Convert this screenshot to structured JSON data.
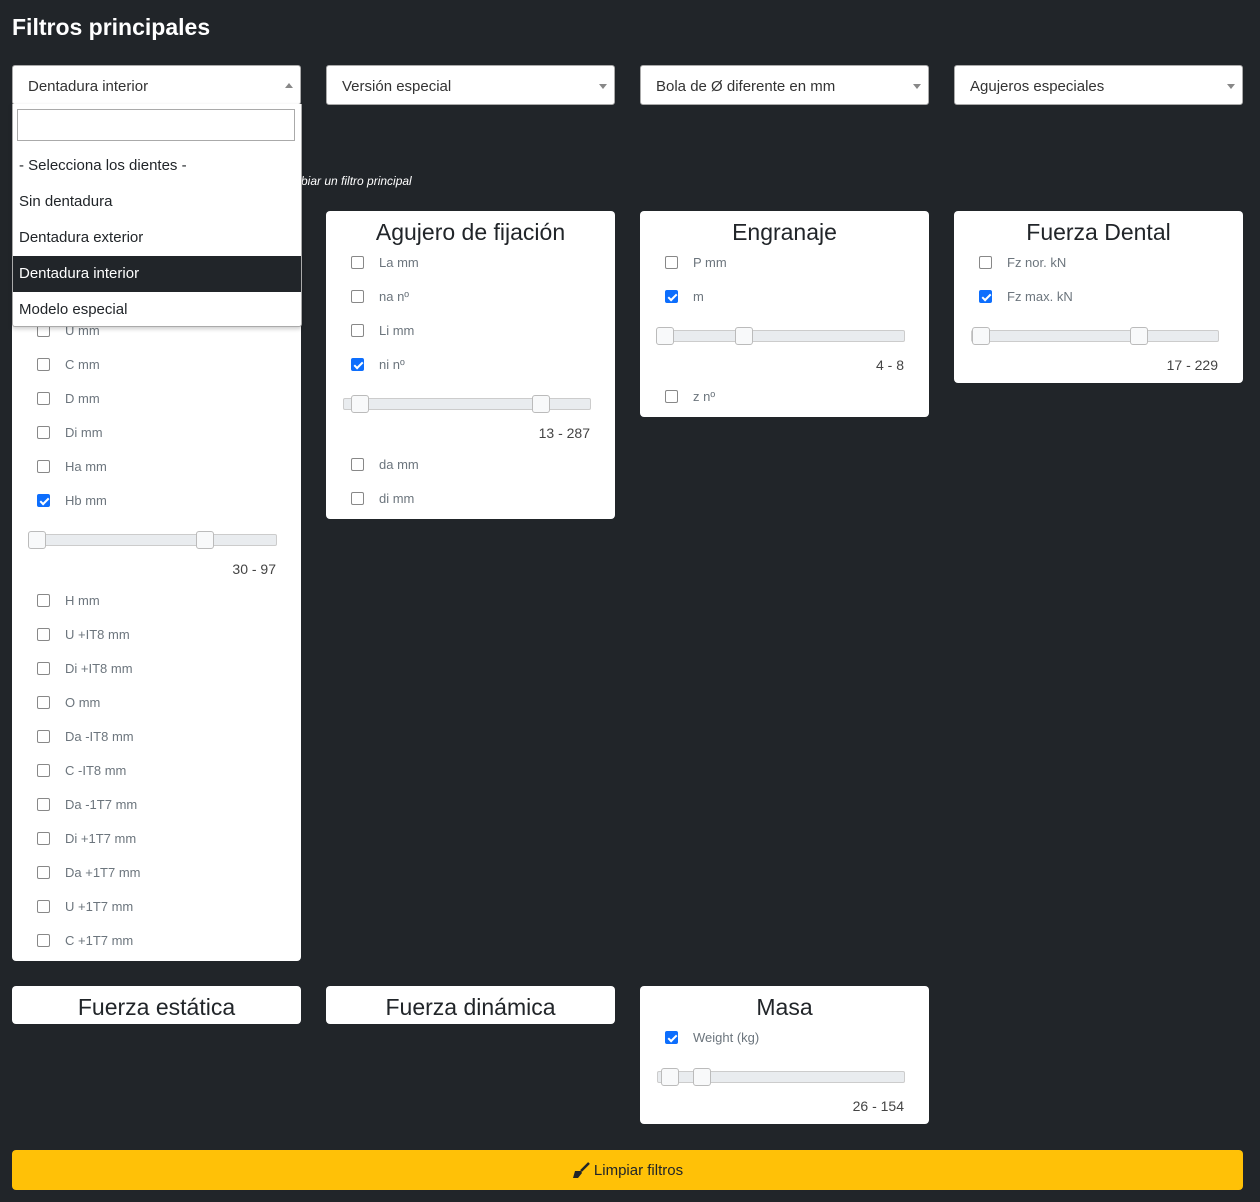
{
  "header": {
    "title": "Filtros principales"
  },
  "selects": [
    "Dentadura interior",
    "Versión especial",
    "Bola de Ø diferente en mm",
    "Agujeros especiales"
  ],
  "dropdown": {
    "options": [
      "- Selecciona los dientes -",
      "Sin dentadura",
      "Dentadura exterior",
      "Dentadura interior",
      "Modelo especial"
    ]
  },
  "hint": "biar un filtro principal",
  "cards": [
    {
      "items": [
        {
          "label": "U mm",
          "checked": false
        },
        {
          "label": "C mm",
          "checked": false
        },
        {
          "label": "D mm",
          "checked": false
        },
        {
          "label": "Di mm",
          "checked": false
        },
        {
          "label": "Ha mm",
          "checked": false
        },
        {
          "label": "Hb mm",
          "checked": true,
          "range": "30 - 97"
        },
        {
          "label": "H mm",
          "checked": false
        },
        {
          "label": "U +IT8 mm",
          "checked": false
        },
        {
          "label": "Di +IT8 mm",
          "checked": false
        },
        {
          "label": "O mm",
          "checked": false
        },
        {
          "label": "Da -IT8 mm",
          "checked": false
        },
        {
          "label": "C -IT8 mm",
          "checked": false
        },
        {
          "label": "Da -1T7 mm",
          "checked": false
        },
        {
          "label": "Di +1T7 mm",
          "checked": false
        },
        {
          "label": "Da +1T7 mm",
          "checked": false
        },
        {
          "label": "U +1T7 mm",
          "checked": false
        },
        {
          "label": "C +1T7 mm",
          "checked": false
        }
      ]
    },
    {
      "title": "Agujero de fijación",
      "items": [
        {
          "label": "La mm",
          "checked": false
        },
        {
          "label": "na nº",
          "checked": false
        },
        {
          "label": "Li mm",
          "checked": false
        },
        {
          "label": "ni nº",
          "checked": true,
          "range": "13 - 287"
        },
        {
          "label": "da mm",
          "checked": false
        },
        {
          "label": "di mm",
          "checked": false
        }
      ]
    },
    {
      "title": "Engranaje",
      "items": [
        {
          "label": "P mm",
          "checked": false
        },
        {
          "label": "m",
          "checked": true,
          "range": "4 - 8"
        },
        {
          "label": "z nº",
          "checked": false
        }
      ]
    },
    {
      "title": "Fuerza Dental",
      "items": [
        {
          "label": "Fz nor. kN",
          "checked": false
        },
        {
          "label": "Fz max. kN",
          "checked": true,
          "range": "17 - 229"
        }
      ]
    },
    {
      "title": "Fuerza estática",
      "items": []
    },
    {
      "title": "Fuerza dinámica",
      "items": []
    },
    {
      "title": "Masa",
      "items": [
        {
          "label": "Weight (kg)",
          "checked": true,
          "range": "26 - 154"
        }
      ]
    }
  ],
  "button": "Limpiar filtros"
}
